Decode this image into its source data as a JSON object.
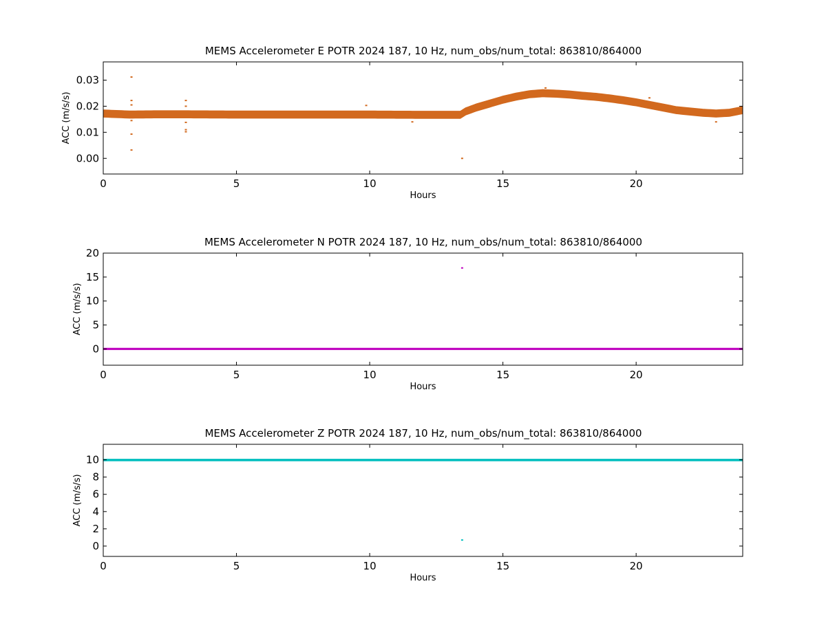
{
  "chart_data": [
    {
      "type": "scatter",
      "title": "MEMS Accelerometer E POTR 2024 187, 10 Hz, num_obs/num_total: 863810/864000",
      "xlabel": "Hours",
      "ylabel": "ACC (m/s/s)",
      "xlim": [
        0,
        24
      ],
      "ylim": [
        -0.006,
        0.037
      ],
      "xticks": [
        "0",
        "5",
        "10",
        "15",
        "20"
      ],
      "yticks": [
        "0.00",
        "0.01",
        "0.02",
        "0.03"
      ],
      "grid": false,
      "color": "#d2691e",
      "series": [
        {
          "band": {
            "x": [
              0,
              0.5,
              1,
              2,
              3,
              5,
              8,
              10,
              12,
              13.4,
              13.6,
              14,
              14.5,
              15,
              15.5,
              16,
              16.5,
              17,
              17.5,
              18,
              18.5,
              19,
              19.5,
              20,
              20.5,
              21,
              21.5,
              22,
              22.5,
              23,
              23.5,
              24
            ],
            "center": [
              0.0172,
              0.017,
              0.0168,
              0.0169,
              0.0169,
              0.0168,
              0.0168,
              0.0168,
              0.0167,
              0.0167,
              0.018,
              0.0195,
              0.021,
              0.0225,
              0.0237,
              0.0246,
              0.025,
              0.0248,
              0.0245,
              0.024,
              0.0236,
              0.023,
              0.0223,
              0.0215,
              0.0205,
              0.0195,
              0.0185,
              0.018,
              0.0175,
              0.0172,
              0.0175,
              0.0185
            ],
            "halfwidth": 0.0014
          },
          "outliers": [
            {
              "x": 1.06,
              "y": 0.0312
            },
            {
              "x": 1.06,
              "y": 0.0222
            },
            {
              "x": 1.06,
              "y": 0.0205
            },
            {
              "x": 1.06,
              "y": 0.0145
            },
            {
              "x": 1.06,
              "y": 0.0093
            },
            {
              "x": 1.06,
              "y": 0.0032
            },
            {
              "x": 3.1,
              "y": 0.0222
            },
            {
              "x": 3.1,
              "y": 0.02
            },
            {
              "x": 3.1,
              "y": 0.0138
            },
            {
              "x": 3.1,
              "y": 0.011
            },
            {
              "x": 3.1,
              "y": 0.0102
            },
            {
              "x": 9.87,
              "y": 0.0203
            },
            {
              "x": 11.6,
              "y": 0.014
            },
            {
              "x": 13.47,
              "y": 0.0
            },
            {
              "x": 16.6,
              "y": 0.027
            },
            {
              "x": 20.5,
              "y": 0.0232
            },
            {
              "x": 23.0,
              "y": 0.014
            }
          ]
        }
      ]
    },
    {
      "type": "scatter",
      "title": "MEMS Accelerometer N POTR 2024 187, 10 Hz, num_obs/num_total: 863810/864000",
      "xlabel": "Hours",
      "ylabel": "ACC (m/s/s)",
      "xlim": [
        0,
        24
      ],
      "ylim": [
        -3.4,
        20
      ],
      "xticks": [
        "0",
        "5",
        "10",
        "15",
        "20"
      ],
      "yticks": [
        "0",
        "5",
        "10",
        "15",
        "20"
      ],
      "grid": false,
      "color": "#bf00bf",
      "series": [
        {
          "band": {
            "x": [
              0,
              24
            ],
            "center": [
              0.0,
              0.0
            ],
            "halfwidth": 0.15
          },
          "outliers": [
            {
              "x": 13.47,
              "y": 16.9
            }
          ]
        }
      ]
    },
    {
      "type": "scatter",
      "title": "MEMS Accelerometer Z POTR 2024 187, 10 Hz, num_obs/num_total: 863810/864000",
      "xlabel": "Hours",
      "ylabel": "ACC (m/s/s)",
      "xlim": [
        0,
        24
      ],
      "ylim": [
        -1.2,
        11.8
      ],
      "xticks": [
        "0",
        "5",
        "10",
        "15",
        "20"
      ],
      "yticks": [
        "0",
        "2",
        "4",
        "6",
        "8",
        "10"
      ],
      "grid": false,
      "color": "#00bfbf",
      "series": [
        {
          "band": {
            "x": [
              0,
              24
            ],
            "center": [
              9.98,
              9.98
            ],
            "halfwidth": 0.1
          },
          "outliers": [
            {
              "x": 13.47,
              "y": 0.7
            }
          ]
        }
      ]
    }
  ]
}
